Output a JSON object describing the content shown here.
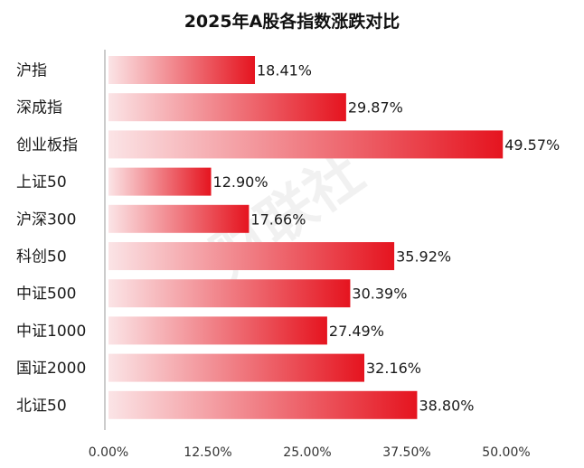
{
  "chart_data": {
    "type": "bar",
    "orientation": "horizontal",
    "title": "2025年A股各指数涨跌对比",
    "categories": [
      "沪指",
      "深成指",
      "创业板指",
      "上证50",
      "沪深300",
      "科创50",
      "中证500",
      "中证1000",
      "国证2000",
      "北证50"
    ],
    "values": [
      18.41,
      29.87,
      49.57,
      12.9,
      17.66,
      35.92,
      30.39,
      27.49,
      32.16,
      38.8
    ],
    "value_labels": [
      "18.41%",
      "29.87%",
      "49.57%",
      "12.90%",
      "17.66%",
      "35.92%",
      "30.39%",
      "27.49%",
      "32.16%",
      "38.80%"
    ],
    "xlim": [
      0,
      50
    ],
    "xticks": [
      0,
      12.5,
      25,
      37.5,
      50
    ],
    "xtick_labels": [
      "0.00%",
      "12.50%",
      "25.00%",
      "37.50%",
      "50.00%"
    ],
    "xlabel": "",
    "ylabel": "",
    "grid": false,
    "legend": "none",
    "colors": {
      "bar_start": "#fbe4e6",
      "bar_end": "#e5141f",
      "axis": "#999999"
    },
    "watermark": "财联社"
  }
}
